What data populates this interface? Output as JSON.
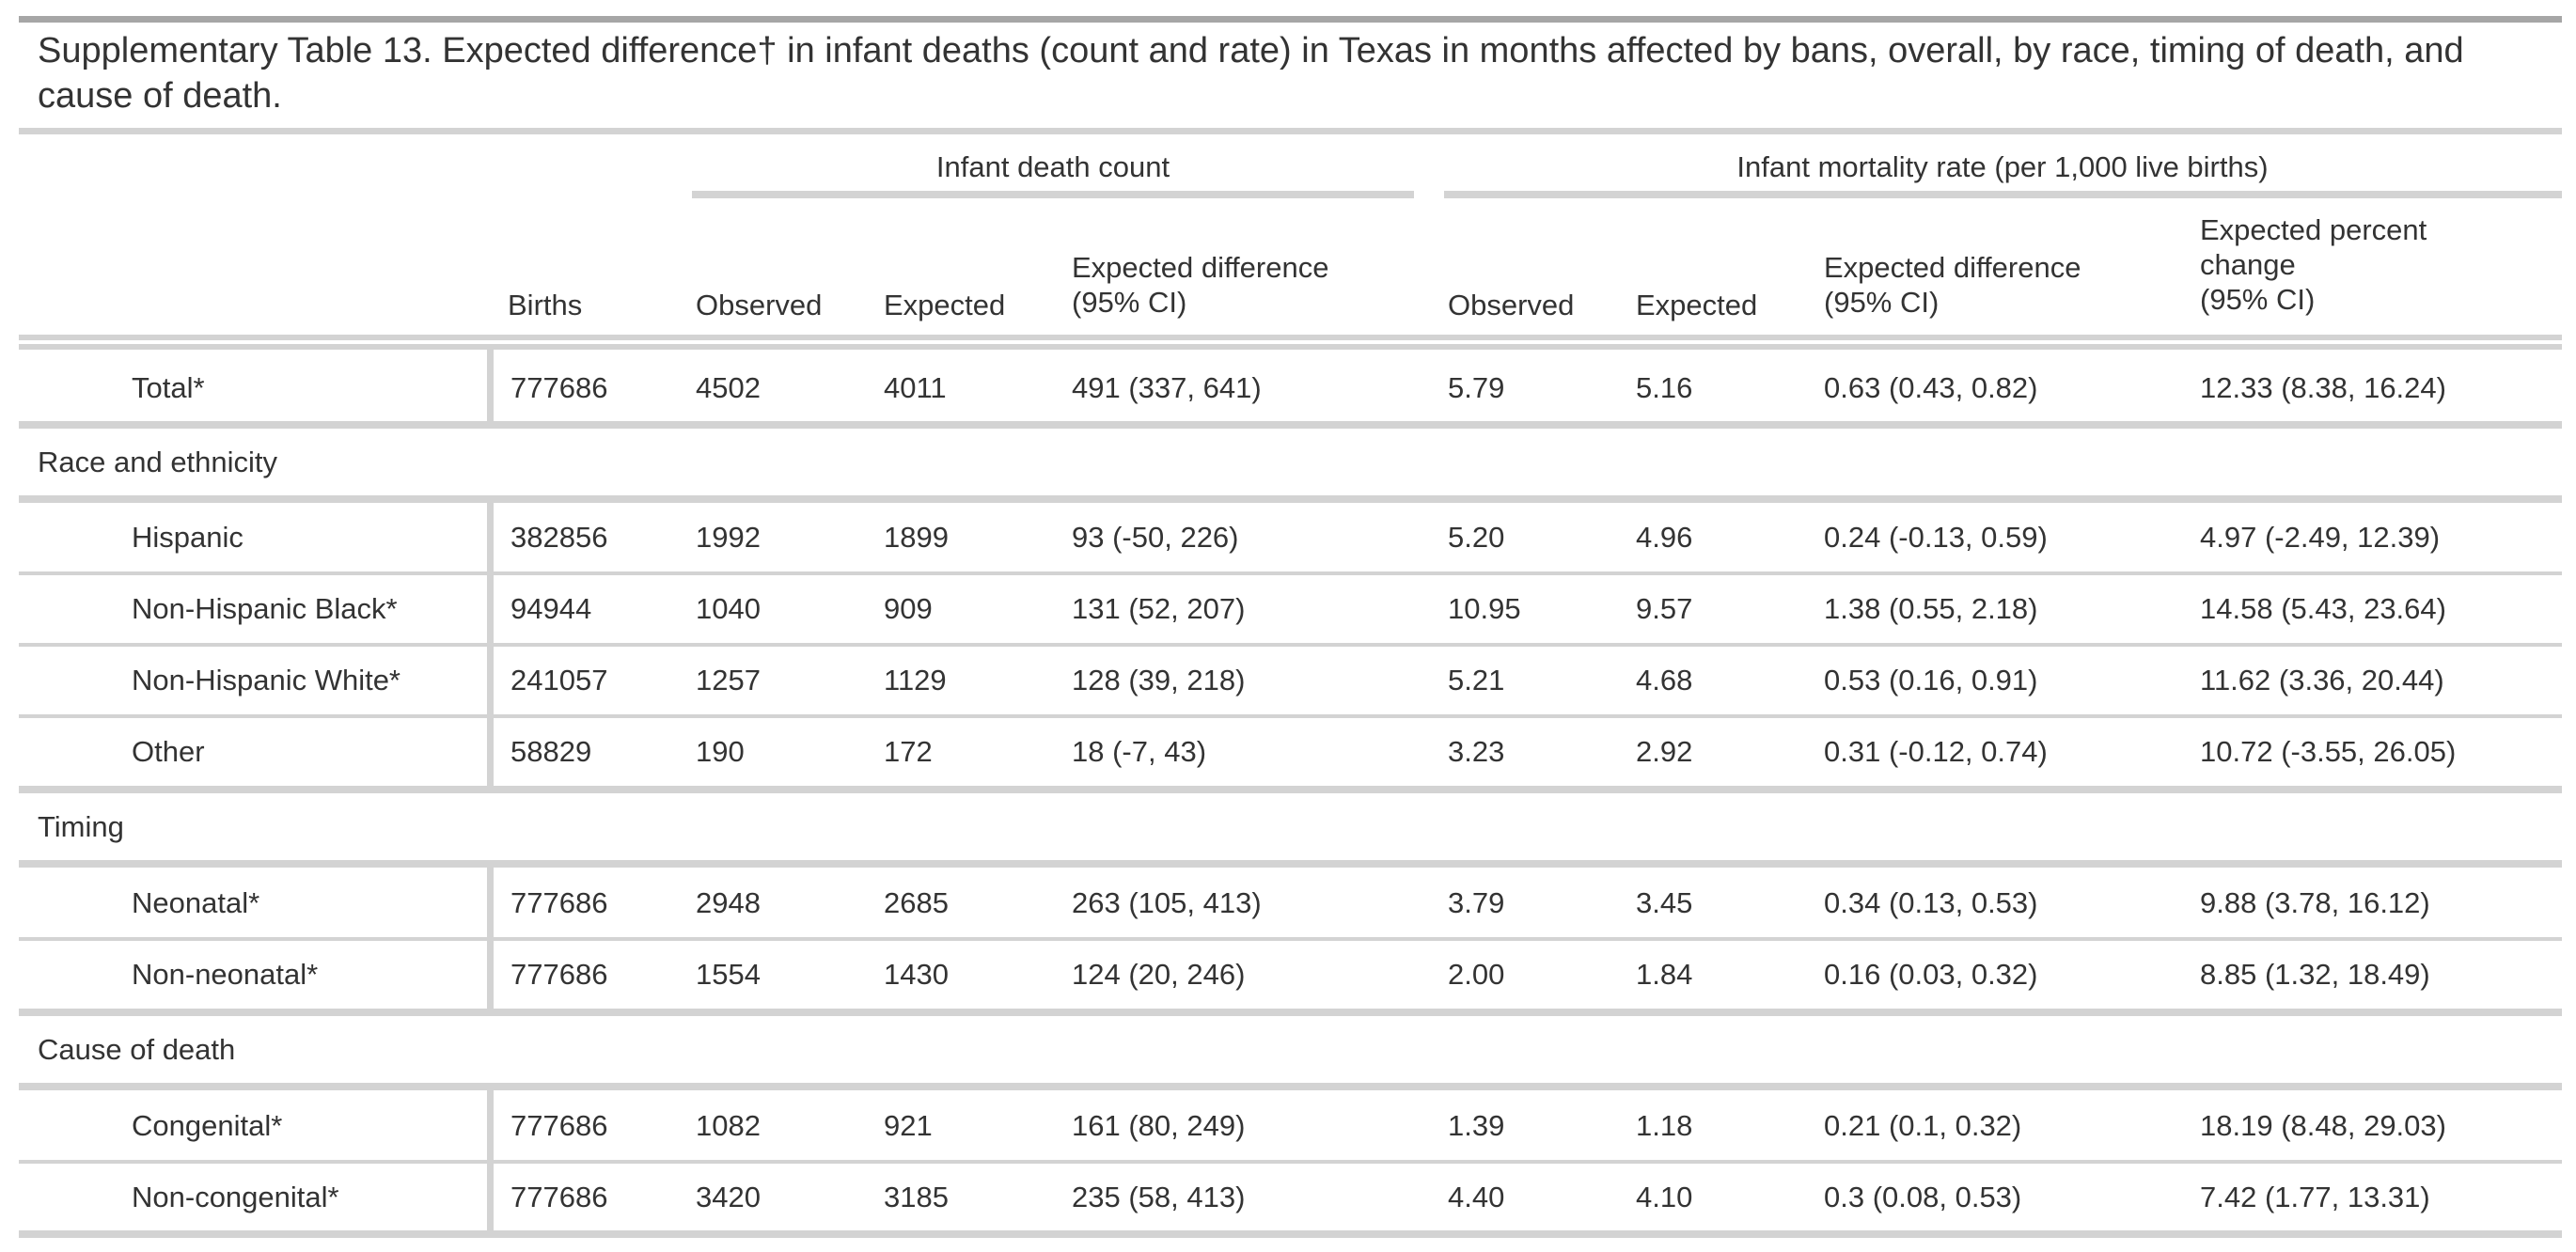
{
  "title": "Supplementary Table 13. Expected difference† in infant deaths (count and rate) in Texas in months affected by bans, overall, by race, timing of death, and cause of death.",
  "header": {
    "group_count": "Infant death count",
    "group_rate": "Infant mortality rate (per 1,000 live births)",
    "columns": {
      "births": "Births",
      "obs_count": "Observed",
      "exp_count": "Expected",
      "diff_count_1": "Expected difference",
      "diff_count_2": "(95% CI)",
      "obs_rate": "Observed",
      "exp_rate": "Expected",
      "diff_rate_1": "Expected difference",
      "diff_rate_2": "(95% CI)",
      "pct_1": "Expected percent",
      "pct_2": "change",
      "pct_3": "(95% CI)"
    }
  },
  "rows": {
    "total": [
      "Total*",
      "777686",
      "4502",
      "4011",
      "491 (337, 641)",
      "5.79",
      "5.16",
      "0.63 (0.43, 0.82)",
      "12.33 (8.38, 16.24)"
    ]
  },
  "sections": {
    "race": {
      "label": "Race and ethnicity",
      "rows": [
        [
          "Hispanic",
          "382856",
          "1992",
          "1899",
          "93 (-50, 226)",
          "5.20",
          "4.96",
          "0.24 (-0.13, 0.59)",
          "4.97 (-2.49, 12.39)"
        ],
        [
          "Non-Hispanic Black*",
          "94944",
          "1040",
          "909",
          "131 (52, 207)",
          "10.95",
          "9.57",
          "1.38 (0.55, 2.18)",
          "14.58 (5.43, 23.64)"
        ],
        [
          "Non-Hispanic White*",
          "241057",
          "1257",
          "1129",
          "128 (39, 218)",
          "5.21",
          "4.68",
          "0.53 (0.16, 0.91)",
          "11.62 (3.36, 20.44)"
        ],
        [
          "Other",
          "58829",
          "190",
          "172",
          "18 (-7, 43)",
          "3.23",
          "2.92",
          "0.31 (-0.12, 0.74)",
          "10.72 (-3.55, 26.05)"
        ]
      ]
    },
    "timing": {
      "label": "Timing",
      "rows": [
        [
          "Neonatal*",
          "777686",
          "2948",
          "2685",
          "263 (105, 413)",
          "3.79",
          "3.45",
          "0.34 (0.13, 0.53)",
          "9.88 (3.78, 16.12)"
        ],
        [
          "Non-neonatal*",
          "777686",
          "1554",
          "1430",
          "124 (20, 246)",
          "2.00",
          "1.84",
          "0.16 (0.03, 0.32)",
          "8.85 (1.32, 18.49)"
        ]
      ]
    },
    "cause": {
      "label": "Cause of death",
      "rows": [
        [
          "Congenital*",
          "777686",
          "1082",
          "921",
          "161 (80, 249)",
          "1.39",
          "1.18",
          "0.21 (0.1, 0.32)",
          "18.19 (8.48, 29.03)"
        ],
        [
          "Non-congenital*",
          "777686",
          "3420",
          "3185",
          "235 (58, 413)",
          "4.40",
          "4.10",
          "0.3 (0.08, 0.53)",
          "7.42 (1.77, 13.31)"
        ]
      ]
    }
  }
}
